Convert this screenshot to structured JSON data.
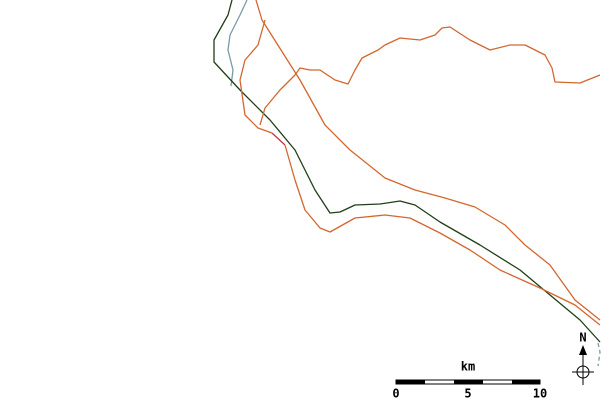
{
  "north": "N",
  "scale": {
    "unit": "km",
    "labels": [
      "0",
      "5",
      "10"
    ]
  }
}
